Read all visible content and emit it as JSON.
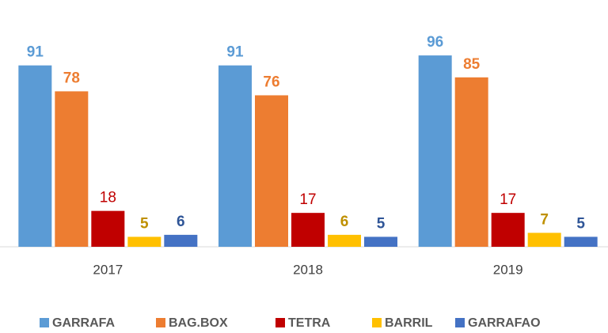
{
  "chart_data": {
    "type": "bar",
    "categories": [
      "2017",
      "2018",
      "2019"
    ],
    "series": [
      {
        "name": "GARRAFA",
        "color": "#5b9bd5",
        "label_color": "#5b9bd5",
        "label_bold": true,
        "values": [
          91,
          91,
          96
        ]
      },
      {
        "name": "BAG.BOX",
        "color": "#ed7d31",
        "label_color": "#ed7d31",
        "label_bold": true,
        "values": [
          78,
          76,
          85
        ]
      },
      {
        "name": "TETRA",
        "color": "#c00000",
        "label_color": "#c00000",
        "label_bold": false,
        "values": [
          18,
          17,
          17
        ]
      },
      {
        "name": "BARRIL",
        "color": "#ffc000",
        "label_color": "#bf9000",
        "label_bold": true,
        "values": [
          5,
          6,
          7
        ]
      },
      {
        "name": "GARRAFAO",
        "color": "#4472c4",
        "label_color": "#2f5597",
        "label_bold": true,
        "values": [
          6,
          5,
          5
        ]
      }
    ],
    "ylim": [
      0,
      100
    ],
    "legend": "bottom"
  }
}
